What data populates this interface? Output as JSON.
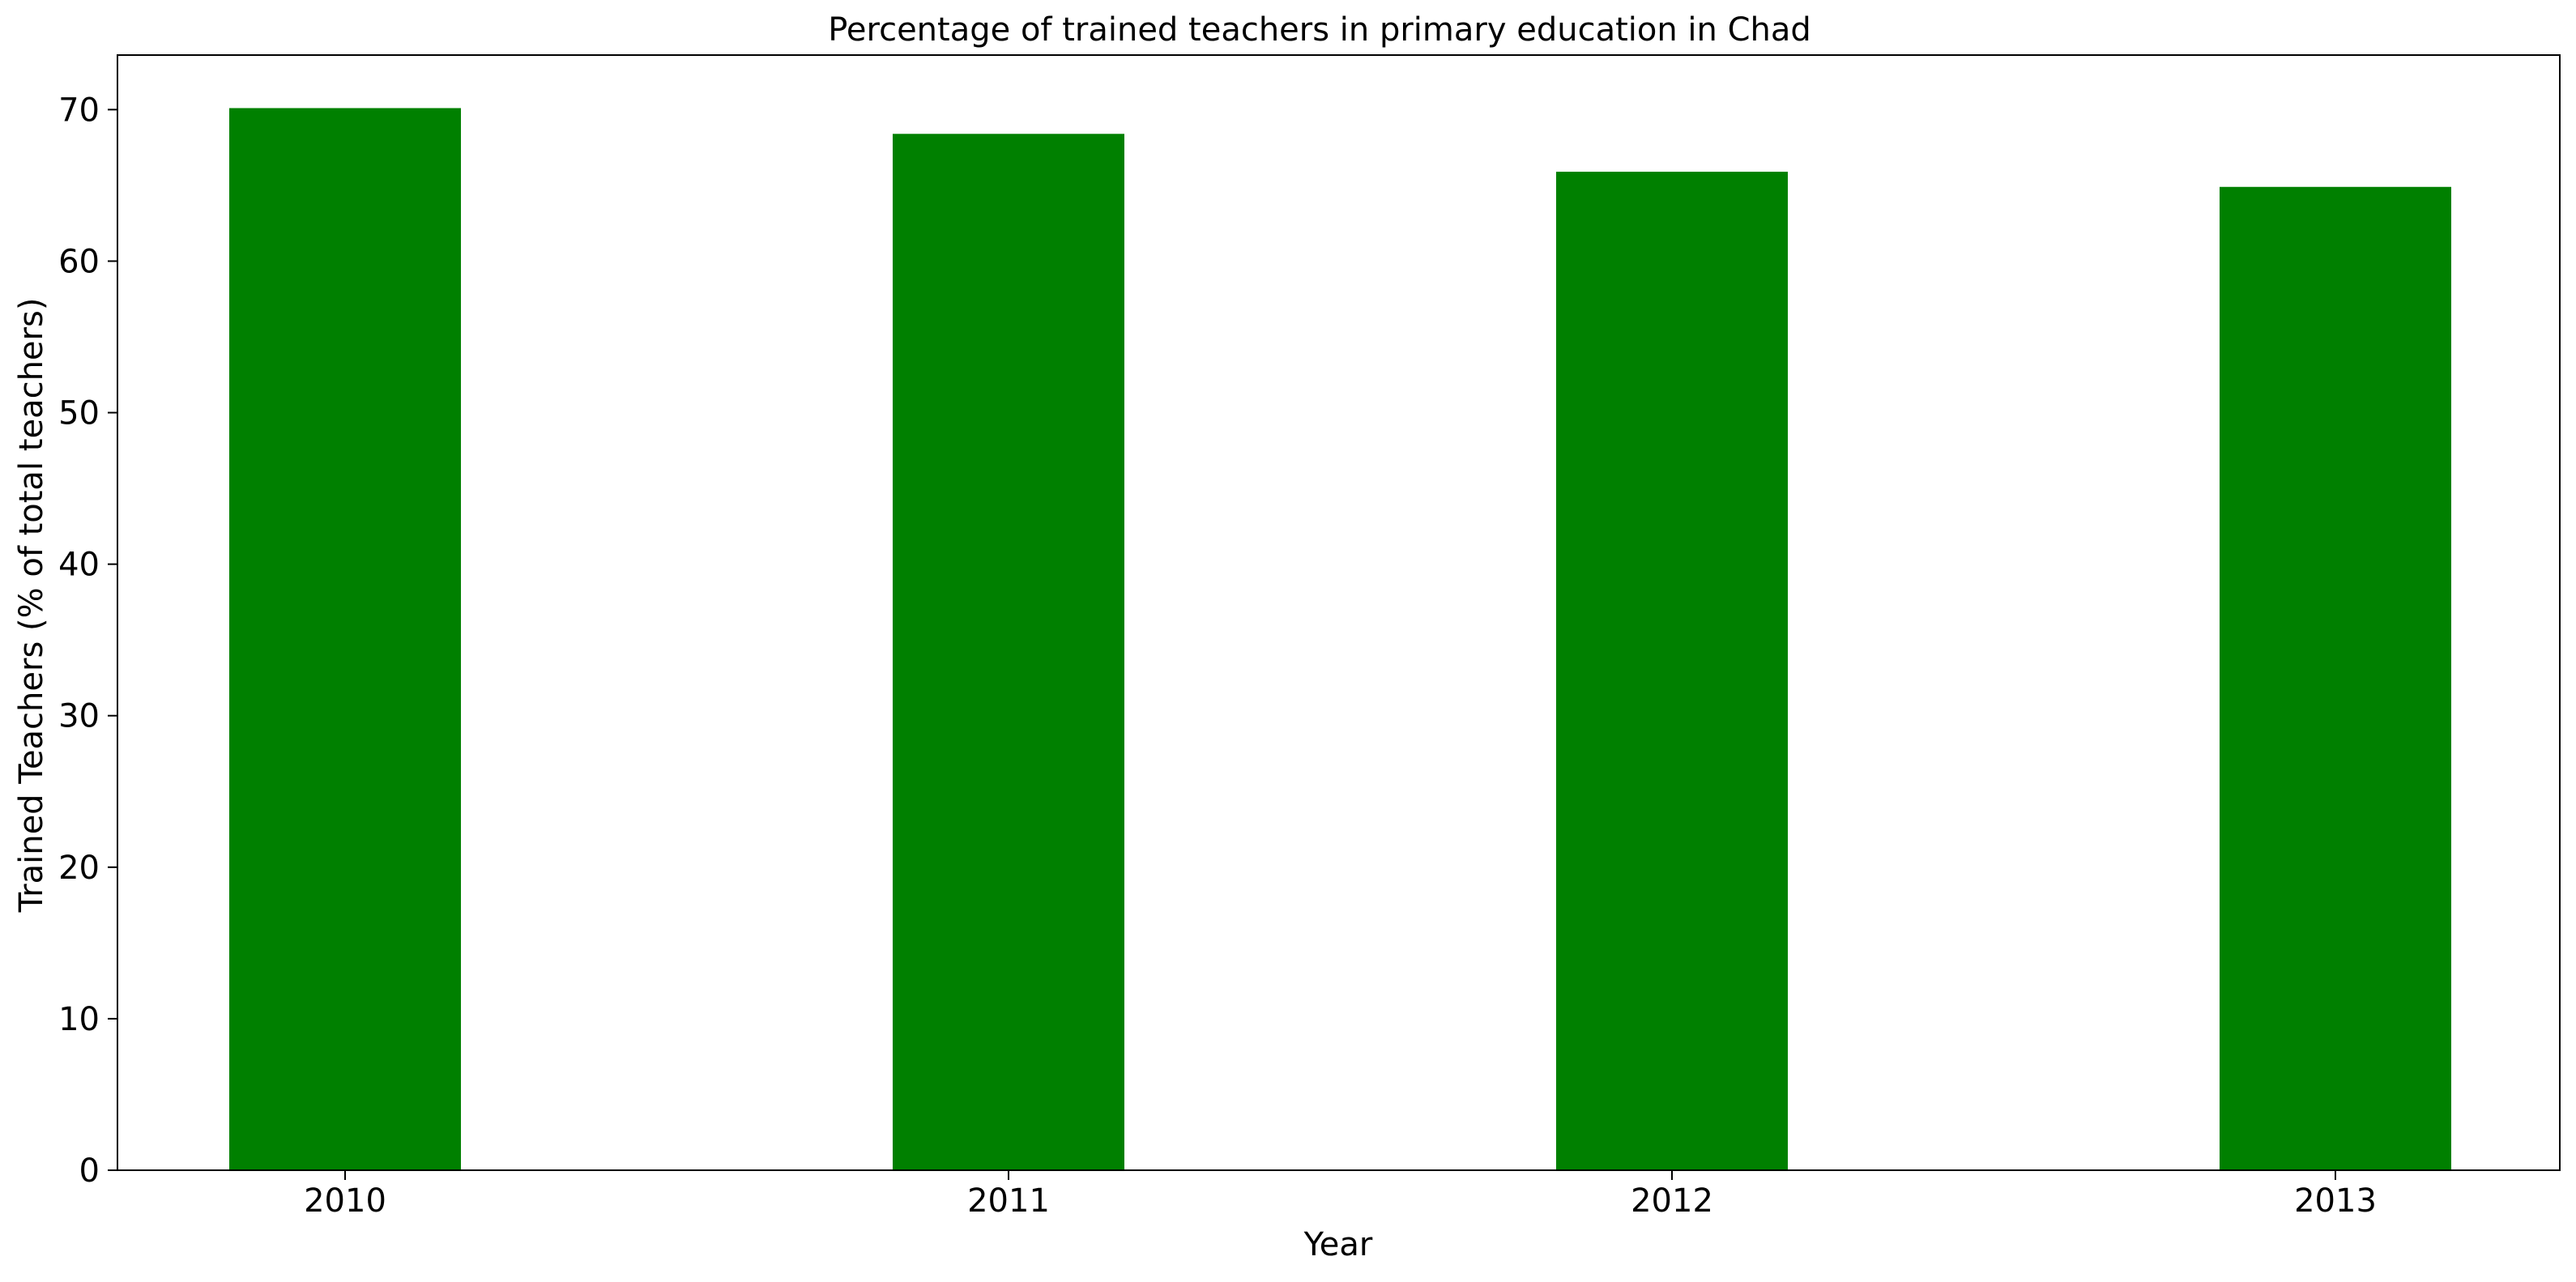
{
  "chart_data": {
    "type": "bar",
    "title": "Percentage of trained teachers in primary education in Chad",
    "xlabel": "Year",
    "ylabel": "Trained Teachers (% of total teachers)",
    "categories": [
      "2010",
      "2011",
      "2012",
      "2013"
    ],
    "values": [
      70.1,
      68.4,
      65.9,
      64.9
    ],
    "ylim": [
      0,
      73.6
    ],
    "yticks": [
      0,
      10,
      20,
      30,
      40,
      50,
      60,
      70
    ],
    "grid": false,
    "legend": "none",
    "bar_color": "#008000"
  }
}
